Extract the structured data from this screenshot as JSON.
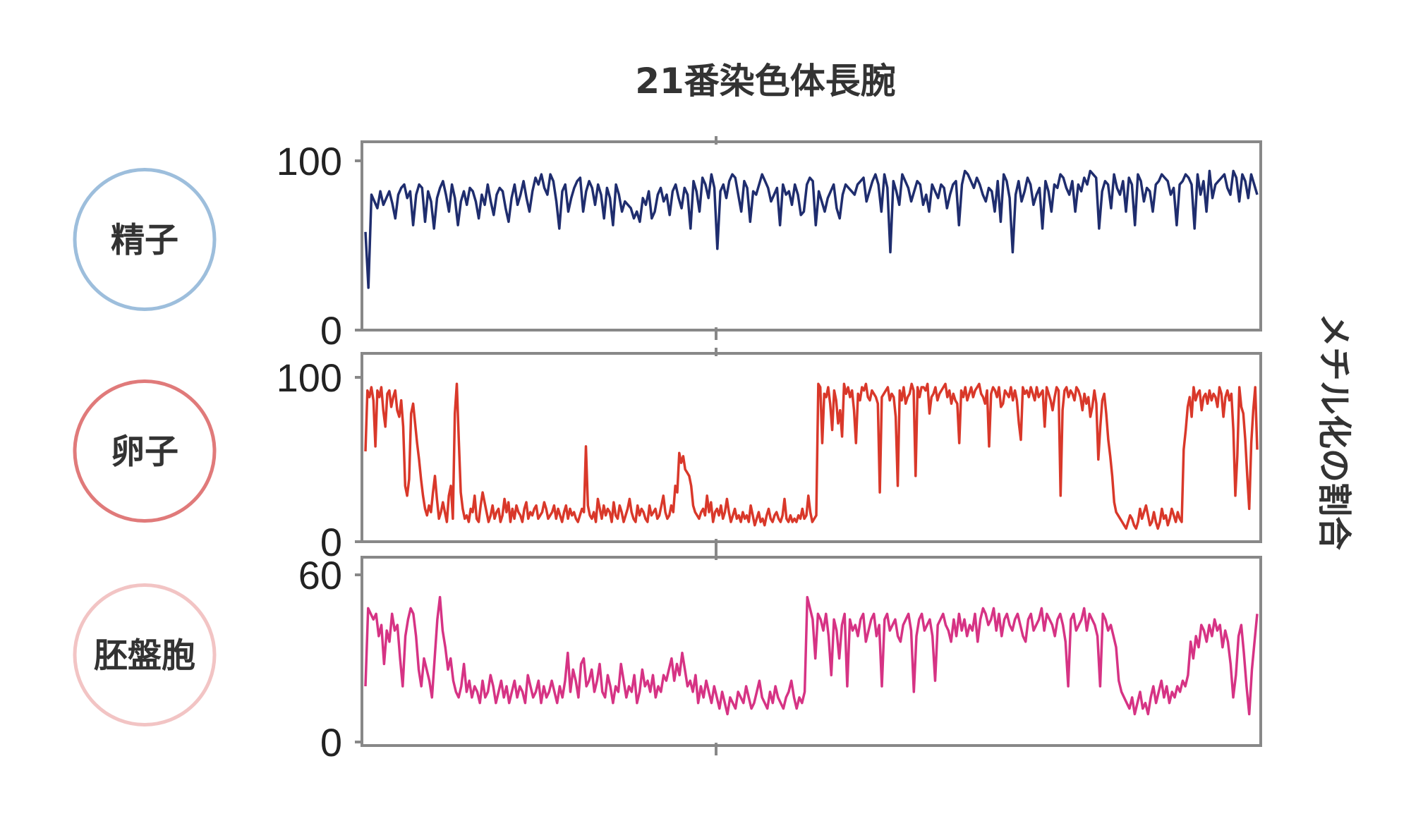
{
  "chart_data": {
    "type": "line",
    "title": "21番染色体長腕",
    "ylabel": "メチル化の割合",
    "xlabel": "",
    "axis_color": "#888888",
    "panels": [
      {
        "sample": "精子",
        "circle_color": "#9dbedc",
        "line_color": "#1f2d6e",
        "ylim": [
          0,
          100
        ],
        "yticks": [
          "100",
          "0"
        ],
        "values": [
          58,
          25,
          80,
          76,
          72,
          82,
          74,
          78,
          82,
          75,
          66,
          80,
          84,
          86,
          78,
          82,
          62,
          80,
          86,
          84,
          64,
          82,
          76,
          60,
          78,
          84,
          88,
          80,
          70,
          86,
          78,
          62,
          76,
          82,
          74,
          84,
          82,
          76,
          66,
          80,
          74,
          86,
          76,
          68,
          80,
          84,
          82,
          72,
          64,
          78,
          86,
          74,
          80,
          88,
          78,
          70,
          82,
          90,
          86,
          92,
          84,
          80,
          92,
          88,
          76,
          60,
          82,
          86,
          70,
          78,
          84,
          88,
          90,
          70,
          82,
          88,
          84,
          74,
          86,
          80,
          66,
          84,
          78,
          62,
          86,
          80,
          70,
          76,
          74,
          72,
          66,
          70,
          64,
          78,
          74,
          82,
          66,
          70,
          80,
          84,
          76,
          80,
          68,
          82,
          86,
          78,
          72,
          84,
          80,
          60,
          88,
          82,
          70,
          90,
          86,
          78,
          92,
          84,
          48,
          82,
          86,
          78,
          88,
          92,
          90,
          80,
          70,
          88,
          84,
          64,
          82,
          80,
          86,
          92,
          88,
          84,
          76,
          80,
          84,
          62,
          86,
          80,
          82,
          74,
          86,
          80,
          68,
          70,
          86,
          90,
          88,
          62,
          82,
          76,
          70,
          78,
          82,
          86,
          72,
          66,
          80,
          86,
          84,
          82,
          80,
          86,
          88,
          90,
          76,
          82,
          88,
          92,
          86,
          70,
          92,
          84,
          46,
          88,
          82,
          74,
          92,
          88,
          84,
          76,
          82,
          88,
          86,
          74,
          80,
          70,
          86,
          82,
          78,
          86,
          84,
          72,
          80,
          86,
          88,
          62,
          86,
          94,
          92,
          88,
          84,
          90,
          86,
          80,
          76,
          84,
          82,
          70,
          88,
          64,
          92,
          88,
          78,
          46,
          80,
          88,
          76,
          82,
          90,
          86,
          74,
          80,
          84,
          60,
          88,
          82,
          70,
          86,
          84,
          92,
          90,
          84,
          80,
          88,
          70,
          86,
          82,
          90,
          86,
          94,
          92,
          90,
          60,
          82,
          88,
          86,
          72,
          92,
          84,
          80,
          88,
          70,
          90,
          86,
          62,
          92,
          88,
          76,
          84,
          82,
          70,
          86,
          88,
          92,
          90,
          88,
          80,
          84,
          62,
          86,
          88,
          92,
          90,
          86,
          60,
          92,
          80,
          88,
          70,
          94,
          78,
          86,
          88,
          90,
          92,
          84,
          80,
          94,
          90,
          76,
          92,
          88,
          78,
          92,
          86,
          80
        ]
      },
      {
        "sample": "卵子",
        "circle_color": "#e07a7a",
        "line_color": "#d9382a",
        "ylim": [
          0,
          100
        ],
        "yticks": [
          "100",
          "0"
        ],
        "values": [
          55,
          92,
          88,
          94,
          86,
          58,
          92,
          88,
          94,
          80,
          70,
          90,
          92,
          82,
          88,
          92,
          80,
          76,
          86,
          70,
          34,
          28,
          38,
          78,
          84,
          72,
          60,
          50,
          38,
          28,
          20,
          16,
          22,
          18,
          30,
          40,
          26,
          14,
          18,
          24,
          18,
          12,
          28,
          34,
          14,
          78,
          96,
          62,
          30,
          20,
          14,
          16,
          12,
          20,
          18,
          28,
          14,
          12,
          22,
          30,
          24,
          18,
          12,
          16,
          22,
          14,
          18,
          20,
          12,
          16,
          26,
          18,
          24,
          12,
          20,
          14,
          22,
          18,
          16,
          12,
          20,
          24,
          14,
          18,
          16,
          20,
          22,
          14,
          16,
          18,
          24,
          20,
          14,
          16,
          18,
          22,
          14,
          20,
          16,
          12,
          18,
          22,
          14,
          20,
          16,
          18,
          14,
          12,
          16,
          20,
          18,
          58,
          22,
          16,
          14,
          18,
          12,
          26,
          20,
          14,
          22,
          16,
          20,
          18,
          12,
          24,
          16,
          14,
          22,
          18,
          12,
          16,
          20,
          26,
          18,
          14,
          12,
          22,
          16,
          20,
          18,
          14,
          12,
          22,
          16,
          18,
          20,
          14,
          16,
          22,
          28,
          18,
          14,
          16,
          22,
          18,
          34,
          30,
          54,
          48,
          52,
          44,
          42,
          40,
          34,
          22,
          18,
          16,
          14,
          18,
          20,
          16,
          28,
          18,
          24,
          12,
          18,
          20,
          16,
          22,
          14,
          18,
          26,
          18,
          12,
          16,
          20,
          14,
          16,
          12,
          18,
          14,
          16,
          12,
          22,
          16,
          10,
          14,
          18,
          12,
          14,
          10,
          16,
          20,
          14,
          12,
          16,
          18,
          14,
          12,
          16,
          26,
          14,
          12,
          16,
          12,
          14,
          12,
          16,
          14,
          20,
          14,
          16,
          28,
          18,
          12,
          14,
          16,
          96,
          94,
          60,
          90,
          88,
          94,
          84,
          68,
          92,
          86,
          72,
          80,
          64,
          96,
          90,
          94,
          88,
          92,
          80,
          60,
          90,
          86,
          94,
          92,
          96,
          88,
          86,
          92,
          90,
          88,
          84,
          30,
          88,
          90,
          92,
          94,
          86,
          90,
          88,
          76,
          34,
          92,
          86,
          94,
          84,
          88,
          90,
          96,
          92,
          40,
          94,
          88,
          94,
          94,
          92,
          96,
          78,
          88,
          90,
          94,
          86,
          90,
          92,
          94,
          96,
          88,
          92,
          84,
          90,
          86,
          84,
          60,
          92,
          88,
          94,
          86,
          90,
          94,
          88,
          92,
          94,
          96,
          90,
          88,
          84,
          92,
          58,
          90,
          94,
          92,
          88,
          94,
          82,
          84,
          92,
          90,
          88,
          94,
          86,
          92,
          86,
          72,
          62,
          94,
          90,
          92,
          88,
          94,
          90,
          86,
          94,
          88,
          90,
          92,
          70,
          94,
          90,
          86,
          80,
          88,
          94,
          92,
          28,
          80,
          92,
          94,
          88,
          92,
          90,
          86,
          94,
          92,
          88,
          80,
          90,
          84,
          88,
          76,
          82,
          92,
          84,
          50,
          70,
          86,
          90,
          78,
          62,
          52,
          40,
          24,
          18,
          16,
          14,
          12,
          10,
          8,
          12,
          16,
          14,
          10,
          8,
          12,
          20,
          14,
          18,
          22,
          16,
          10,
          12,
          18,
          12,
          8,
          12,
          20,
          14,
          16,
          10,
          14,
          20,
          16,
          12,
          18,
          14,
          12,
          56,
          68,
          82,
          88,
          76,
          94,
          86,
          90,
          92,
          80,
          88,
          90,
          84,
          92,
          86,
          90,
          88,
          82,
          94,
          90,
          76,
          88,
          92,
          86,
          90,
          68,
          28,
          52,
          94,
          82,
          78,
          62,
          40,
          20,
          60,
          80,
          94,
          56
        ]
      },
      {
        "sample": "胚盤胞",
        "circle_color": "#f2c4c4",
        "line_color": "#d63384",
        "ylim": [
          0,
          60
        ],
        "yticks": [
          "60",
          "0"
        ],
        "values": [
          20,
          48,
          46,
          44,
          46,
          38,
          42,
          28,
          40,
          36,
          46,
          40,
          42,
          30,
          20,
          38,
          44,
          48,
          46,
          38,
          26,
          20,
          30,
          26,
          22,
          16,
          30,
          44,
          52,
          40,
          34,
          26,
          30,
          22,
          18,
          16,
          20,
          28,
          18,
          22,
          16,
          20,
          18,
          14,
          22,
          16,
          18,
          24,
          20,
          14,
          18,
          22,
          16,
          20,
          14,
          18,
          22,
          16,
          20,
          18,
          14,
          24,
          20,
          16,
          18,
          22,
          14,
          20,
          16,
          18,
          22,
          18,
          14,
          20,
          16,
          22,
          32,
          18,
          26,
          22,
          16,
          28,
          30,
          20,
          22,
          26,
          18,
          22,
          28,
          18,
          16,
          24,
          20,
          14,
          20,
          18,
          28,
          22,
          16,
          20,
          18,
          24,
          14,
          18,
          26,
          20,
          22,
          18,
          24,
          16,
          20,
          18,
          24,
          22,
          26,
          30,
          22,
          28,
          24,
          32,
          26,
          20,
          22,
          18,
          24,
          14,
          20,
          16,
          22,
          18,
          14,
          20,
          16,
          12,
          18,
          14,
          10,
          16,
          14,
          12,
          18,
          16,
          14,
          20,
          16,
          12,
          14,
          18,
          22,
          16,
          14,
          12,
          18,
          14,
          20,
          16,
          14,
          12,
          16,
          18,
          22,
          16,
          12,
          16,
          14,
          18,
          52,
          48,
          44,
          30,
          46,
          44,
          40,
          46,
          38,
          24,
          44,
          40,
          30,
          42,
          46,
          20,
          44,
          40,
          42,
          38,
          44,
          46,
          36,
          40,
          44,
          46,
          38,
          42,
          20,
          44,
          46,
          40,
          42,
          44,
          38,
          36,
          42,
          44,
          46,
          40,
          18,
          38,
          44,
          46,
          40,
          42,
          44,
          38,
          22,
          42,
          44,
          46,
          42,
          40,
          36,
          44,
          38,
          46,
          40,
          44,
          38,
          42,
          40,
          46,
          36,
          44,
          48,
          46,
          42,
          44,
          48,
          40,
          46,
          38,
          44,
          46,
          42,
          40,
          44,
          46,
          42,
          38,
          36,
          44,
          46,
          40,
          42,
          44,
          48,
          40,
          46,
          44,
          42,
          38,
          44,
          46,
          42,
          36,
          20,
          44,
          46,
          40,
          42,
          44,
          48,
          40,
          46,
          44,
          42,
          38,
          20,
          46,
          44,
          40,
          42,
          38,
          34,
          22,
          18,
          16,
          14,
          12,
          16,
          10,
          14,
          18,
          12,
          14,
          10,
          16,
          20,
          14,
          18,
          22,
          16,
          20,
          14,
          18,
          16,
          20,
          18,
          22,
          20,
          24,
          36,
          30,
          38,
          34,
          42,
          40,
          36,
          42,
          38,
          44,
          40,
          42,
          34,
          40,
          36,
          28,
          16,
          24,
          38,
          42,
          32,
          20,
          10,
          26,
          36,
          46
        ]
      }
    ]
  }
}
